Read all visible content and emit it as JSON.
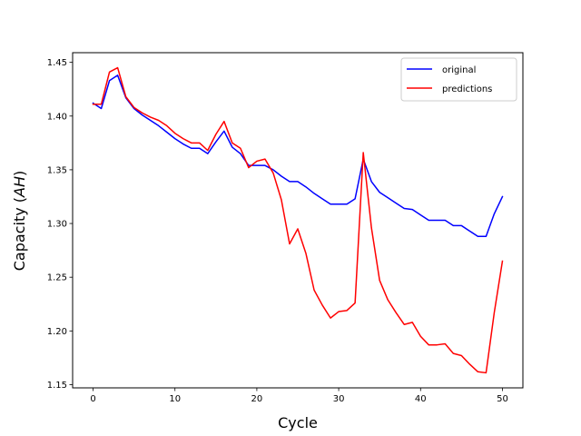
{
  "chart_data": {
    "type": "line",
    "xlabel": "Cycle",
    "ylabel_prefix": "Capacity (",
    "ylabel_italic": "AH",
    "ylabel_suffix": ")",
    "xlim": [
      -2.5,
      52.5
    ],
    "ylim": [
      1.147,
      1.459
    ],
    "xticks": [
      0,
      10,
      20,
      30,
      40,
      50
    ],
    "yticks": [
      1.15,
      1.2,
      1.25,
      1.3,
      1.35,
      1.4,
      1.45
    ],
    "xtick_labels": [
      "0",
      "10",
      "20",
      "30",
      "40",
      "50"
    ],
    "ytick_labels": [
      "1.15",
      "1.20",
      "1.25",
      "1.30",
      "1.35",
      "1.40",
      "1.45"
    ],
    "grid": false,
    "legend_position": "top-right",
    "x": [
      0,
      1,
      2,
      3,
      4,
      5,
      6,
      7,
      8,
      9,
      10,
      11,
      12,
      13,
      14,
      15,
      16,
      17,
      18,
      19,
      20,
      21,
      22,
      23,
      24,
      25,
      26,
      27,
      28,
      29,
      30,
      31,
      32,
      33,
      34,
      35,
      36,
      37,
      38,
      39,
      40,
      41,
      42,
      43,
      44,
      45,
      46,
      47,
      48,
      49,
      50
    ],
    "series": [
      {
        "name": "original",
        "color": "#0000ff",
        "values": [
          1.412,
          1.407,
          1.433,
          1.438,
          1.417,
          1.407,
          1.401,
          1.396,
          1.391,
          1.385,
          1.379,
          1.374,
          1.37,
          1.37,
          1.365,
          1.376,
          1.386,
          1.371,
          1.365,
          1.354,
          1.354,
          1.354,
          1.35,
          1.344,
          1.339,
          1.339,
          1.334,
          1.328,
          1.323,
          1.318,
          1.318,
          1.318,
          1.323,
          1.36,
          1.339,
          1.329,
          1.324,
          1.319,
          1.314,
          1.313,
          1.308,
          1.303,
          1.303,
          1.303,
          1.298,
          1.298,
          1.293,
          1.288,
          1.288,
          1.309,
          1.325
        ]
      },
      {
        "name": "predictions",
        "color": "#ff0000",
        "values": [
          1.411,
          1.411,
          1.441,
          1.445,
          1.418,
          1.408,
          1.403,
          1.399,
          1.396,
          1.391,
          1.384,
          1.379,
          1.375,
          1.375,
          1.368,
          1.383,
          1.395,
          1.375,
          1.37,
          1.352,
          1.358,
          1.36,
          1.347,
          1.322,
          1.281,
          1.295,
          1.272,
          1.238,
          1.224,
          1.212,
          1.218,
          1.219,
          1.226,
          1.366,
          1.296,
          1.247,
          1.229,
          1.217,
          1.206,
          1.208,
          1.195,
          1.187,
          1.187,
          1.188,
          1.179,
          1.177,
          1.169,
          1.162,
          1.161,
          1.217,
          1.265
        ]
      }
    ]
  }
}
